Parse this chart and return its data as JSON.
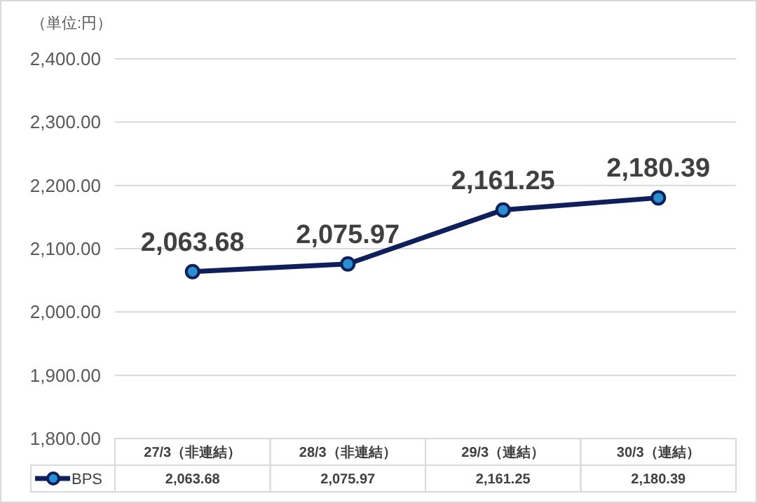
{
  "chart_data": {
    "type": "line",
    "ylabel": "（単位:円）",
    "categories": [
      "27/3（非連結）",
      "28/3（非連結）",
      "29/3（連結）",
      "30/3（連結）"
    ],
    "series": [
      {
        "name": "BPS",
        "color": "#0f1f5c",
        "values": [
          2063.68,
          2075.97,
          2161.25,
          2180.39
        ],
        "value_labels": [
          "2,063.68",
          "2,075.97",
          "2,161.25",
          "2,180.39"
        ]
      }
    ],
    "ylim": [
      1800,
      2400
    ],
    "yticks": [
      {
        "value": 1800,
        "label": "1,800.00"
      },
      {
        "value": 1900,
        "label": "1,900.00"
      },
      {
        "value": 2000,
        "label": "2,000.00"
      },
      {
        "value": 2100,
        "label": "2,100.00"
      },
      {
        "value": 2200,
        "label": "2,200.00"
      },
      {
        "value": 2300,
        "label": "2,300.00"
      },
      {
        "value": 2400,
        "label": "2,400.00"
      }
    ],
    "grid": "y",
    "legend": "bottom",
    "marker": "circle",
    "line_style": "solid"
  }
}
